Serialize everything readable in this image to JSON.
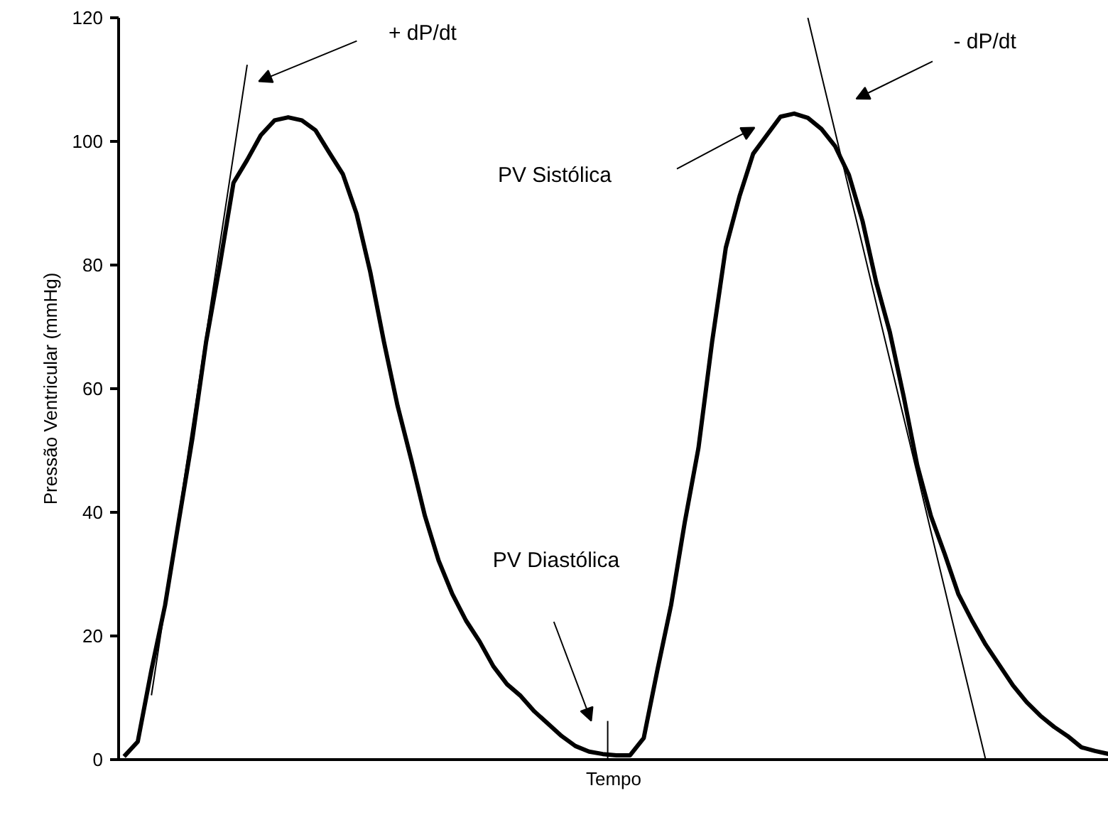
{
  "chart_data": {
    "type": "line",
    "xlabel": "Tempo",
    "ylabel": "Pressão Ventricular (mmHg)",
    "categories": [
      null,
      null,
      null,
      null,
      null,
      null,
      null,
      null,
      null,
      null,
      null,
      null,
      null,
      null,
      null,
      null,
      null,
      null,
      null,
      null,
      null,
      null,
      null,
      null,
      null,
      null,
      null,
      null,
      null,
      null,
      null,
      null,
      null,
      null,
      null,
      null,
      null,
      null,
      null,
      null,
      null,
      null,
      null,
      null,
      null,
      null,
      null,
      null,
      null,
      null,
      null,
      null,
      null,
      null,
      null,
      null,
      null,
      null,
      null,
      null,
      null,
      null,
      null,
      null,
      null,
      null,
      null,
      null,
      null,
      null,
      null,
      null,
      null
    ],
    "ylim": [
      0,
      120
    ],
    "yticks": [
      0,
      20,
      40,
      60,
      80,
      100,
      120
    ],
    "grid": false,
    "series": [
      {
        "color": "#000000",
        "values": [
          0.5,
          2.9,
          14.5,
          25,
          38.6,
          52,
          67.6,
          80,
          93.3,
          97,
          101,
          103.4,
          103.9,
          103.4,
          101.8,
          98.2,
          94.7,
          88.3,
          78.9,
          67.6,
          57.2,
          48.5,
          39.4,
          32.2,
          26.8,
          22.5,
          19.1,
          15.1,
          12.2,
          10.3,
          7.8,
          5.8,
          3.8,
          2.2,
          1.3,
          0.9,
          0.7,
          0.7,
          3.5,
          14.5,
          25,
          38.4,
          50.4,
          67.6,
          82.8,
          91.1,
          98,
          101,
          104,
          104.5,
          103.8,
          102,
          99.2,
          94.6,
          87.1,
          77.2,
          69.1,
          58.8,
          47.6,
          39.4,
          33.3,
          26.8,
          22.5,
          18.6,
          15.3,
          12,
          9.3,
          7.1,
          5.3,
          3.8,
          2,
          1.4,
          0.9
        ]
      },
      {
        "color": "#000000",
        "values": [
          null,
          null,
          10.4,
          24.9,
          39.5,
          54.1,
          68.7,
          83.3,
          97.8,
          112.4,
          null,
          null,
          null,
          null,
          null,
          null,
          null,
          null,
          null,
          null,
          null,
          null,
          null,
          null,
          null,
          null,
          null,
          null,
          null,
          null,
          null,
          null,
          null,
          null,
          null,
          null,
          null,
          null,
          null,
          null,
          null,
          null,
          null,
          null,
          null,
          null,
          null,
          null,
          null,
          null,
          null,
          null,
          null,
          null,
          null,
          null,
          null,
          null,
          null,
          null,
          null,
          null,
          null,
          null,
          null,
          null,
          null,
          null,
          null,
          null,
          null,
          null,
          null
        ]
      },
      {
        "color": "#000000",
        "values": [
          null,
          null,
          null,
          null,
          null,
          null,
          null,
          null,
          null,
          null,
          null,
          null,
          null,
          null,
          null,
          null,
          null,
          null,
          null,
          null,
          null,
          null,
          null,
          null,
          null,
          null,
          null,
          null,
          null,
          null,
          null,
          null,
          null,
          null,
          null,
          null,
          null,
          null,
          null,
          null,
          null,
          null,
          null,
          null,
          null,
          null,
          null,
          null,
          null,
          null,
          120,
          110.7,
          101.5,
          92.3,
          83.1,
          73.8,
          64.6,
          55.4,
          46.2,
          36.9,
          27.7,
          18.4,
          9.2,
          0,
          null,
          null,
          null,
          null,
          null,
          null,
          null,
          null,
          null
        ]
      }
    ],
    "annotations": [
      "+ dP/dt",
      "- dP/dt",
      "PV Sistólica",
      "PV Diastólica"
    ]
  }
}
